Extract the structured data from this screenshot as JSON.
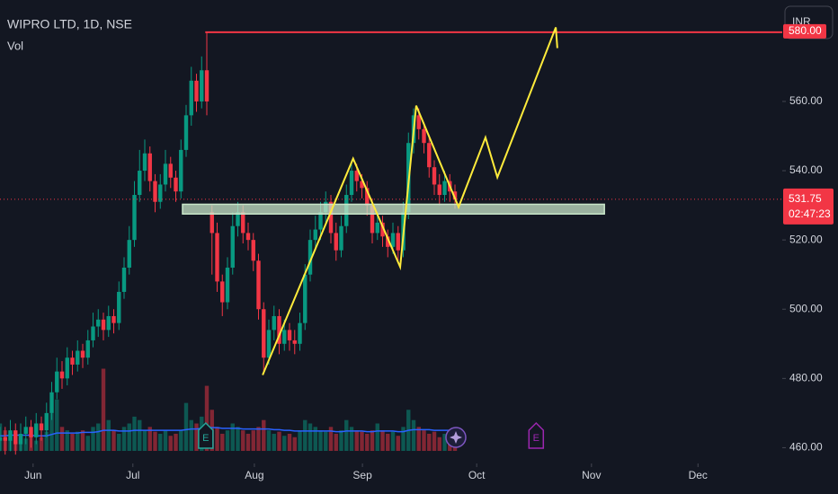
{
  "chart_data": {
    "type": "candlestick",
    "title": "WIPRO LTD, 1D, NSE",
    "indicator": "Vol",
    "currency": "INR",
    "up_color": "#089981",
    "down_color": "#f23645",
    "open": [
      462,
      463,
      462,
      465,
      461,
      464,
      466,
      463,
      467,
      465,
      470,
      476,
      482,
      480,
      486,
      484,
      488,
      486,
      491,
      495,
      497,
      494,
      498,
      496,
      505,
      512,
      520,
      533,
      540,
      545,
      537,
      531,
      536,
      542,
      538,
      534,
      546,
      556,
      566,
      560,
      569,
      528,
      522,
      508,
      502,
      512,
      524,
      528,
      522,
      520,
      514,
      500,
      486,
      494,
      498,
      490,
      494,
      491,
      490,
      496,
      510,
      520,
      523,
      528,
      531,
      522,
      517,
      524,
      533,
      540,
      537,
      535,
      530,
      522,
      525,
      521,
      518,
      522,
      517,
      528,
      548,
      556,
      552,
      548,
      541,
      536,
      533,
      537,
      534
    ],
    "high": [
      466,
      466,
      468,
      467,
      467,
      469,
      468,
      470,
      469,
      473,
      479,
      486,
      485,
      489,
      488,
      491,
      490,
      494,
      499,
      500,
      499,
      501,
      500,
      508,
      515,
      524,
      537,
      546,
      549,
      547,
      539,
      539,
      546,
      544,
      540,
      549,
      559,
      570,
      568,
      573,
      580,
      530,
      525,
      510,
      515,
      528,
      531,
      530,
      525,
      522,
      516,
      502,
      497,
      501,
      500,
      497,
      496,
      494,
      499,
      513,
      523,
      527,
      531,
      534,
      533,
      525,
      527,
      536,
      543,
      542,
      539,
      537,
      532,
      528,
      527,
      523,
      525,
      524,
      531,
      551,
      558,
      558,
      554,
      550,
      543,
      539,
      540,
      539,
      536
    ],
    "low": [
      459,
      458,
      459,
      458,
      459,
      461,
      460,
      461,
      462,
      463,
      468,
      474,
      477,
      478,
      481,
      482,
      483,
      484,
      489,
      492,
      491,
      492,
      493,
      494,
      503,
      510,
      518,
      531,
      537,
      534,
      528,
      529,
      534,
      535,
      531,
      532,
      544,
      553,
      557,
      558,
      556,
      510,
      505,
      498,
      500,
      510,
      521,
      519,
      517,
      511,
      497,
      482,
      484,
      491,
      487,
      488,
      488,
      487,
      488,
      494,
      508,
      517,
      520,
      525,
      519,
      514,
      515,
      522,
      531,
      534,
      532,
      527,
      519,
      520,
      518,
      515,
      516,
      514,
      515,
      526,
      545,
      549,
      545,
      538,
      533,
      530,
      531,
      531,
      529
    ],
    "close": [
      463,
      462,
      465,
      461,
      464,
      466,
      463,
      467,
      465,
      470,
      476,
      482,
      480,
      486,
      484,
      488,
      486,
      491,
      495,
      497,
      494,
      498,
      496,
      505,
      512,
      520,
      533,
      540,
      545,
      537,
      531,
      536,
      542,
      538,
      534,
      546,
      556,
      566,
      560,
      569,
      560,
      522,
      508,
      502,
      512,
      524,
      528,
      522,
      520,
      514,
      500,
      486,
      494,
      498,
      490,
      494,
      491,
      490,
      496,
      510,
      520,
      523,
      528,
      531,
      522,
      517,
      524,
      533,
      540,
      537,
      535,
      530,
      522,
      525,
      521,
      518,
      522,
      517,
      528,
      548,
      556,
      552,
      548,
      541,
      536,
      533,
      537,
      534,
      531.75
    ],
    "volume": [
      40,
      30,
      25,
      20,
      22,
      18,
      25,
      15,
      20,
      28,
      55,
      75,
      35,
      30,
      25,
      28,
      30,
      22,
      35,
      40,
      120,
      45,
      30,
      25,
      35,
      40,
      50,
      45,
      30,
      35,
      28,
      25,
      30,
      22,
      25,
      30,
      70,
      45,
      40,
      50,
      95,
      60,
      35,
      25,
      30,
      40,
      35,
      30,
      25,
      30,
      35,
      45,
      30,
      25,
      28,
      22,
      25,
      20,
      30,
      45,
      40,
      35,
      30,
      28,
      35,
      25,
      30,
      45,
      35,
      30,
      28,
      25,
      30,
      40,
      30,
      25,
      28,
      22,
      35,
      60,
      45,
      35,
      30,
      25,
      28,
      20,
      25,
      22,
      18
    ],
    "volume_ma": [
      22,
      22,
      23,
      23,
      23,
      23,
      23,
      22,
      22,
      22,
      24,
      26,
      26,
      26,
      26,
      26,
      27,
      27,
      27,
      28,
      30,
      30,
      30,
      29,
      29,
      29,
      30,
      30,
      30,
      30,
      30,
      30,
      30,
      30,
      30,
      30,
      31,
      32,
      32,
      33,
      34,
      34,
      34,
      33,
      33,
      33,
      33,
      32,
      32,
      32,
      32,
      32,
      32,
      31,
      31,
      30,
      30,
      29,
      29,
      29,
      29,
      29,
      29,
      29,
      29,
      28,
      28,
      29,
      29,
      29,
      29,
      28,
      28,
      29,
      29,
      29,
      29,
      28,
      28,
      30,
      31,
      31,
      31,
      31,
      30,
      30,
      30,
      30,
      29
    ],
    "volume_ma_color": "#2962ff",
    "vlim": [
      0,
      160
    ],
    "xlim": [
      0,
      151.3
    ],
    "ylim": [
      457,
      589.3
    ],
    "xticks": [
      {
        "value": 6.4,
        "label": "Jun"
      },
      {
        "value": 25.7,
        "label": "Jul"
      },
      {
        "value": 49.2,
        "label": "Aug"
      },
      {
        "value": 70.1,
        "label": "Sep"
      },
      {
        "value": 92.2,
        "label": "Oct"
      },
      {
        "value": 114.4,
        "label": "Nov"
      },
      {
        "value": 135,
        "label": "Dec"
      }
    ],
    "yticks": [
      {
        "value": 460,
        "label": "460.00"
      },
      {
        "value": 480,
        "label": "480.00"
      },
      {
        "value": 500,
        "label": "500.00"
      },
      {
        "value": 520,
        "label": "520.00"
      },
      {
        "value": 540,
        "label": "540.00"
      },
      {
        "value": 560,
        "label": "560.00"
      }
    ],
    "level": {
      "value": 580,
      "label": "580.00",
      "start": 39.7,
      "color": "#f23645"
    },
    "last_price": 531.75,
    "countdown": "02:47:23",
    "zone": {
      "x0": 35.3,
      "x1": 116.9,
      "y0": 527.5,
      "y1": 530.3,
      "color": "#c8e6c9"
    },
    "projection": {
      "color": "#ffeb3b",
      "x": [
        50.8,
        68.3,
        77.4,
        80.5,
        88.7,
        93.9,
        96.2,
        107.5,
        107.8
      ],
      "y": [
        481,
        543.5,
        512.2,
        558.8,
        529.5,
        549.6,
        538.1,
        581.4,
        575.4
      ]
    },
    "events": [
      {
        "x": 39.8,
        "label": "E",
        "color": "#26a69a"
      },
      {
        "x": 103.7,
        "label": "E",
        "color": "#9c27b0"
      }
    ]
  }
}
